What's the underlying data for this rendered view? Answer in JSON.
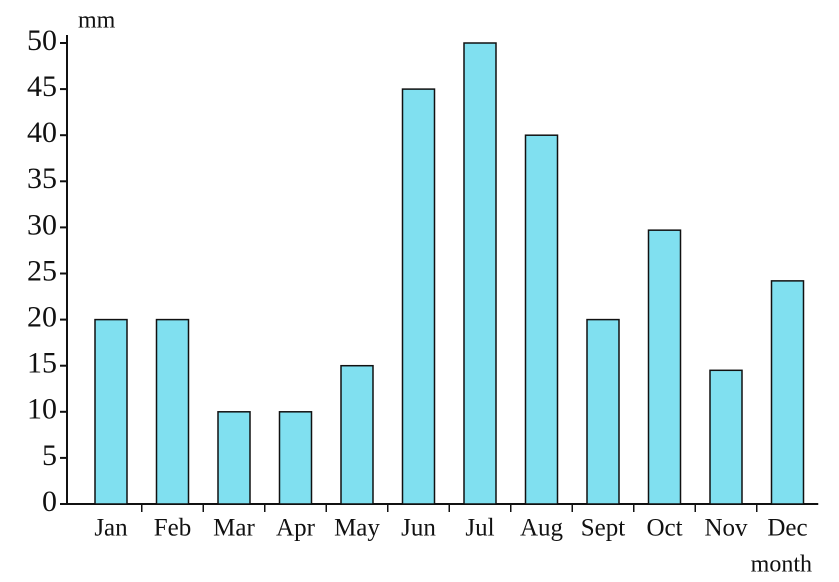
{
  "chart_data": {
    "type": "bar",
    "y_label": "mm",
    "x_label": "month",
    "categories": [
      "Jan",
      "Feb",
      "Mar",
      "Apr",
      "May",
      "Jun",
      "Jul",
      "Aug",
      "Sept",
      "Oct",
      "Nov",
      "Dec"
    ],
    "values": [
      20,
      20,
      10,
      10,
      15,
      45,
      50,
      40,
      20,
      29.7,
      14.5,
      24.2
    ],
    "color": "#80e0f0",
    "ylim": [
      0,
      50
    ],
    "yticks": [
      0,
      5,
      10,
      15,
      20,
      25,
      30,
      35,
      40,
      45,
      50
    ],
    "grid": false
  }
}
